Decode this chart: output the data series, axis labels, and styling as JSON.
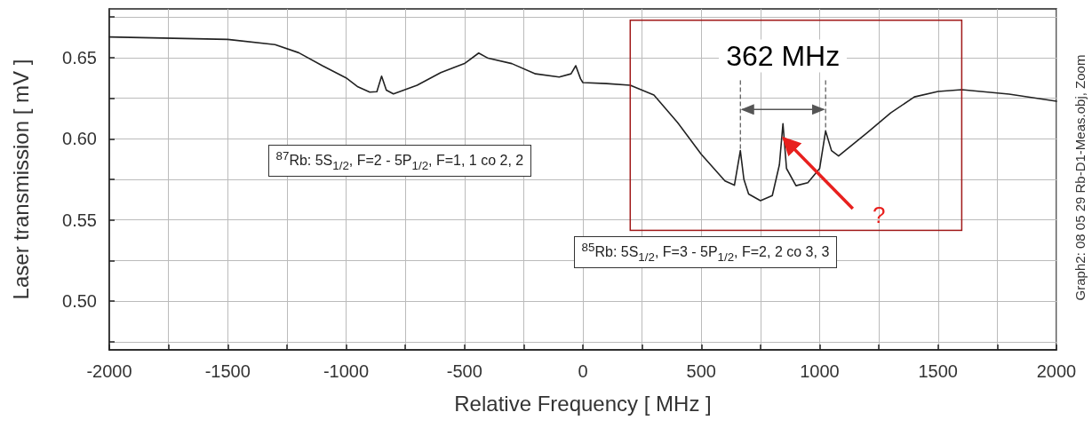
{
  "chart_data": {
    "type": "line",
    "xlabel": "Relative Frequency [ MHz ]",
    "ylabel": "Laser transmission [ mV ]",
    "x": [
      -2000,
      -1500,
      -1300,
      -1200,
      -1100,
      -1000,
      -950,
      -900,
      -870,
      -850,
      -830,
      -800,
      -700,
      -600,
      -500,
      -440,
      -400,
      -300,
      -200,
      -100,
      -50,
      -30,
      -10,
      0,
      100,
      200,
      300,
      400,
      500,
      600,
      640,
      665,
      680,
      700,
      750,
      800,
      830,
      845,
      860,
      900,
      950,
      1000,
      1025,
      1050,
      1080,
      1200,
      1300,
      1400,
      1500,
      1600,
      1800,
      2000
    ],
    "series": [
      {
        "color": "#222222",
        "values": [
          0.6627,
          0.6612,
          0.658,
          0.653,
          0.645,
          0.6375,
          0.632,
          0.6287,
          0.629,
          0.6386,
          0.63,
          0.6276,
          0.633,
          0.6408,
          0.6463,
          0.6528,
          0.6496,
          0.6463,
          0.64,
          0.638,
          0.64,
          0.645,
          0.637,
          0.6346,
          0.634,
          0.633,
          0.627,
          0.61,
          0.5905,
          0.574,
          0.5714,
          0.5927,
          0.575,
          0.566,
          0.5619,
          0.565,
          0.584,
          0.6093,
          0.5817,
          0.5711,
          0.573,
          0.5817,
          0.6048,
          0.5927,
          0.5894,
          0.6037,
          0.6159,
          0.6258,
          0.6291,
          0.6302,
          0.6275,
          0.6231
        ]
      }
    ],
    "xlim": [
      -2000,
      2000
    ],
    "xticks": [
      -2000,
      {
        "value": -1750,
        "label": null
      },
      -1500,
      {
        "value": -1250,
        "label": null
      },
      -1000,
      {
        "value": -750,
        "label": null
      },
      -500,
      {
        "value": -250,
        "label": null
      },
      0,
      {
        "value": 250,
        "label": null
      },
      500,
      {
        "value": 750,
        "label": null
      },
      1000,
      {
        "value": 1250,
        "label": null
      },
      1500,
      {
        "value": 1750,
        "label": null
      },
      2000
    ],
    "ylim": [
      0.47,
      0.68
    ],
    "yticks": [
      {
        "value": 0.475,
        "label": null
      },
      {
        "value": 0.5,
        "label": "0.50"
      },
      {
        "value": 0.525,
        "label": null
      },
      0.55,
      {
        "value": 0.575,
        "label": null
      },
      {
        "value": 0.6,
        "label": "0.60"
      },
      {
        "value": 0.625,
        "label": null
      },
      0.65,
      {
        "value": 0.675,
        "label": null
      }
    ],
    "grid": true,
    "marker": "none",
    "line_style": "solid",
    "annotations": [
      "$^{87}$Rb: 5S$_{1/2}$, F=2 - 5P$_{1/2}$, F=1, 1 co 2, 2",
      "$^{85}$Rb: 5S$_{1/2}$, F=3 - 5P$_{1/2}$, F=2, 2 co 3, 3",
      {
        "text": "362 MHz",
        "x": 665,
        "y": 0.5927
      },
      {
        "text": "?",
        "x": 850,
        "y": 0.6
      },
      "Graph2: 08 05 29 Rb-D1-Meas.obj, Zoom"
    ]
  }
}
